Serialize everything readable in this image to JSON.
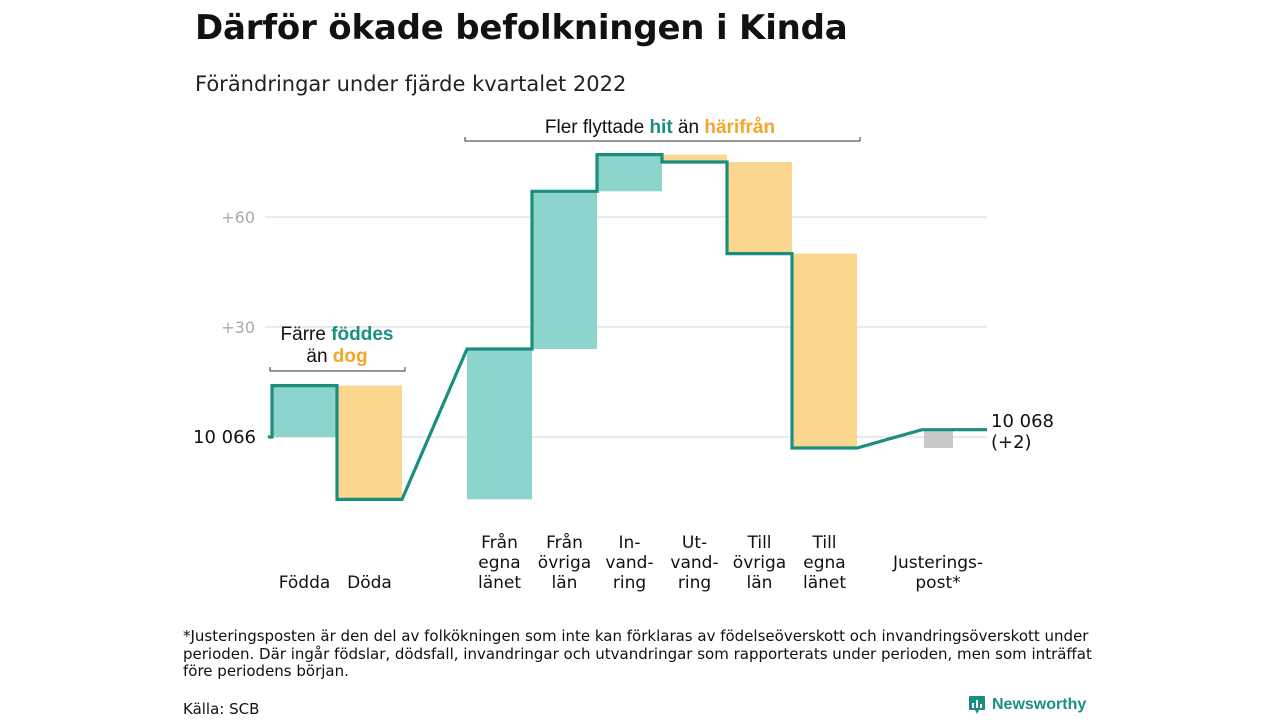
{
  "title": "Därför ökade befolkningen i Kinda",
  "subtitle": "Förändringar under fjärde kvartalet 2022",
  "chart_data": {
    "type": "waterfall",
    "start_label": "10 066",
    "end_label_line1": "10 068",
    "end_label_line2": "(+2)",
    "start_value": 0,
    "ylim": [
      -40,
      90
    ],
    "y_ticks": [
      {
        "value": 60,
        "label": "+60"
      },
      {
        "value": 30,
        "label": "+30"
      }
    ],
    "steps": [
      {
        "label_lines": [
          "Födda"
        ],
        "value": 14,
        "kind": "in"
      },
      {
        "label_lines": [
          "Döda"
        ],
        "value": -31,
        "kind": "out"
      },
      {
        "label_lines": [
          "Från",
          "egna",
          "länet"
        ],
        "value": 41,
        "kind": "in"
      },
      {
        "label_lines": [
          "Från",
          "övriga",
          "län"
        ],
        "value": 43,
        "kind": "in"
      },
      {
        "label_lines": [
          "In-",
          "vand-",
          "ring"
        ],
        "value": 10,
        "kind": "in"
      },
      {
        "label_lines": [
          "Ut-",
          "vand-",
          "ring"
        ],
        "value": -2,
        "kind": "out"
      },
      {
        "label_lines": [
          "Till",
          "övriga",
          "län"
        ],
        "value": -25,
        "kind": "out"
      },
      {
        "label_lines": [
          "Till",
          "egna",
          "länet"
        ],
        "value": -53,
        "kind": "out"
      },
      {
        "label_lines": [
          "Justerings-",
          "post*"
        ],
        "value": 5,
        "kind": "adjust"
      }
    ],
    "annotations": [
      {
        "id": "births",
        "line1_parts": [
          {
            "text": "Färre ",
            "role": "plain"
          },
          {
            "text": "föddes",
            "role": "in"
          }
        ],
        "line2_parts": [
          {
            "text": "än ",
            "role": "plain"
          },
          {
            "text": "dog",
            "role": "out"
          }
        ]
      },
      {
        "id": "migration",
        "line1_parts": [
          {
            "text": "Fler flyttade ",
            "role": "plain"
          },
          {
            "text": "hit",
            "role": "in"
          },
          {
            "text": " än ",
            "role": "plain"
          },
          {
            "text": "härifrån",
            "role": "out"
          }
        ]
      }
    ],
    "colors": {
      "in": "#8dd5cc",
      "out": "#fad68f",
      "adjust": "#c8c8c8",
      "line": "#1a8f80",
      "in_text": "#1a8f80",
      "out_text": "#f4a62a",
      "grid": "#dddddd",
      "tick_text": "#aaaaaa"
    }
  },
  "footnote": "*Justeringsposten är den del av folkökningen som inte kan förklaras av födelseöverskott och invandringsöverskott under perioden. Där ingår födslar, dödsfall, invandringar och utvandringar som rapporterats under perioden, men som inträffat före periodens början.",
  "source": "Källa: SCB",
  "brand": "Newsworthy",
  "brand_icon": "bar-chart-icon"
}
